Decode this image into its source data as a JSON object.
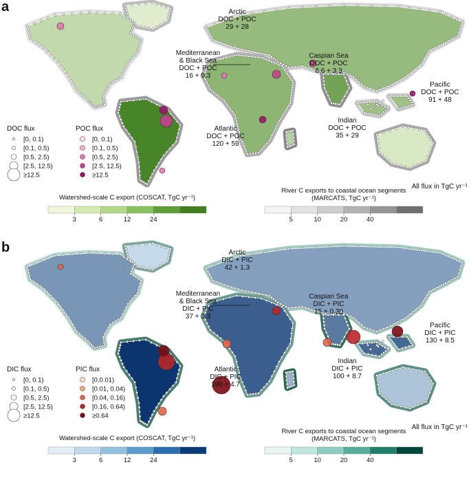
{
  "chart_data": [
    {
      "type": "map",
      "panel_label": "a",
      "colors": {
        "land_low": "#eef6dc",
        "land_high": "#3f7f1f",
        "ocean_seg_low": "#f4f4f4",
        "ocean_seg_high": "#6f6f6f",
        "doc_marker_fill": "#ffffff",
        "doc_marker_stroke": "#333333",
        "poc_colors": [
          "#fbe1ee",
          "#f3b6d3",
          "#e17bb0",
          "#c64190",
          "#9b1368"
        ]
      },
      "basin_annotations": [
        {
          "ocean": "Arctic",
          "component": "DOC + POC",
          "value": "29 + 28"
        },
        {
          "ocean": "Mediterranean\n& Black Sea",
          "component": "DOC + POC",
          "value": "16 + 9.3"
        },
        {
          "ocean": "Caspian Sea",
          "component": "DOC + POC",
          "value": "6.6 + 3.3"
        },
        {
          "ocean": "Pacific",
          "component": "DOC + POC",
          "value": "91 + 48"
        },
        {
          "ocean": "Indian",
          "component": "DOC + POC",
          "value": "35 + 29"
        },
        {
          "ocean": "Atlantic",
          "component": "DOC + POC",
          "value": "120 + 59"
        }
      ],
      "units_note": "All flux in TgC yr⁻¹",
      "flux_legends": [
        {
          "title": "DOC flux",
          "bins": [
            "[0, 0.1)",
            "[0.1, 0.5)",
            "[0.5, 2.5)",
            "[2.5, 12.5)",
            "≥12.5"
          ]
        },
        {
          "title": "POC flux",
          "bins": [
            "[0, 0.1)",
            "[0.1, 0.5)",
            "[0.5, 2.5)",
            "[2.5, 12.5)",
            "≥12.5"
          ]
        }
      ],
      "colorbars": [
        {
          "title": "Watershed-scale C export (COSCAT, TgC yr⁻¹)",
          "ticks": [
            "3",
            "6",
            "12",
            "24"
          ],
          "colors": [
            "#eef6dc",
            "#d4eab0",
            "#b2d987",
            "#87c15b",
            "#5e9e37",
            "#3f7f1f"
          ]
        },
        {
          "title": "River C exports to coastal ocean segments\n(MARCATS, TgC yr⁻¹)",
          "ticks": [
            "5",
            "10",
            "20",
            "40"
          ],
          "colors": [
            "#f5f5f5",
            "#e2e2e2",
            "#cdcdcd",
            "#b3b3b3",
            "#959595",
            "#6f6f6f"
          ]
        }
      ]
    },
    {
      "type": "map",
      "panel_label": "b",
      "colors": {
        "land_low": "#d8e9f5",
        "land_high": "#08306b",
        "ocean_seg_low": "#d3efe9",
        "ocean_seg_high": "#014636",
        "dic_marker_fill": "#ffffff",
        "dic_marker_stroke": "#333333",
        "pic_colors": [
          "#fde0cc",
          "#f6a98a",
          "#e0664c",
          "#b8262a",
          "#7a0a14"
        ]
      },
      "basin_annotations": [
        {
          "ocean": "Arctic",
          "component": "DIC + PIC",
          "value": "42 + 1.3"
        },
        {
          "ocean": "Mediterranean\n& Black Sea",
          "component": "DIC + PIC",
          "value": "37 + 3.3"
        },
        {
          "ocean": "Caspian Sea",
          "component": "DIC + PIC",
          "value": "15 + 0.30"
        },
        {
          "ocean": "Pacific",
          "component": "DIC + PIC",
          "value": "130 + 8.5"
        },
        {
          "ocean": "Indian",
          "component": "DIC + PIC",
          "value": "100 + 8.7"
        },
        {
          "ocean": "Atlantic",
          "component": "DIC + PIC",
          "value": "190 + 4.7"
        }
      ],
      "units_note": "All flux in TgC yr⁻¹",
      "flux_legends": [
        {
          "title": "DIC flux",
          "bins": [
            "[0, 0.1)",
            "[0.1, 0.5)",
            "[0.5, 2.5)",
            "[2.5, 12.5)",
            "≥12.5"
          ]
        },
        {
          "title": "PIC flux",
          "bins": [
            "[0,0.01)",
            "[0.01, 0.04)",
            "[0.04, 0.16)",
            "[0.16, 0.64)",
            "≥0.64"
          ]
        }
      ],
      "colorbars": [
        {
          "title": "Watershed-scale C export (COSCAT, TgC yr⁻¹)",
          "ticks": [
            "3",
            "6",
            "12",
            "24"
          ],
          "colors": [
            "#e3eff8",
            "#c1d9ee",
            "#93bfe0",
            "#5d9ccd",
            "#2c6db0",
            "#0a3a78"
          ]
        },
        {
          "title": "River C exports to coastal ocean segments\n(MARCATS, TgC yr⁻¹)",
          "ticks": [
            "5",
            "10",
            "20",
            "40"
          ],
          "colors": [
            "#e6f5f1",
            "#bfe6dc",
            "#8dcfbf",
            "#56ad99",
            "#1f7f6b",
            "#014636"
          ]
        }
      ]
    }
  ]
}
